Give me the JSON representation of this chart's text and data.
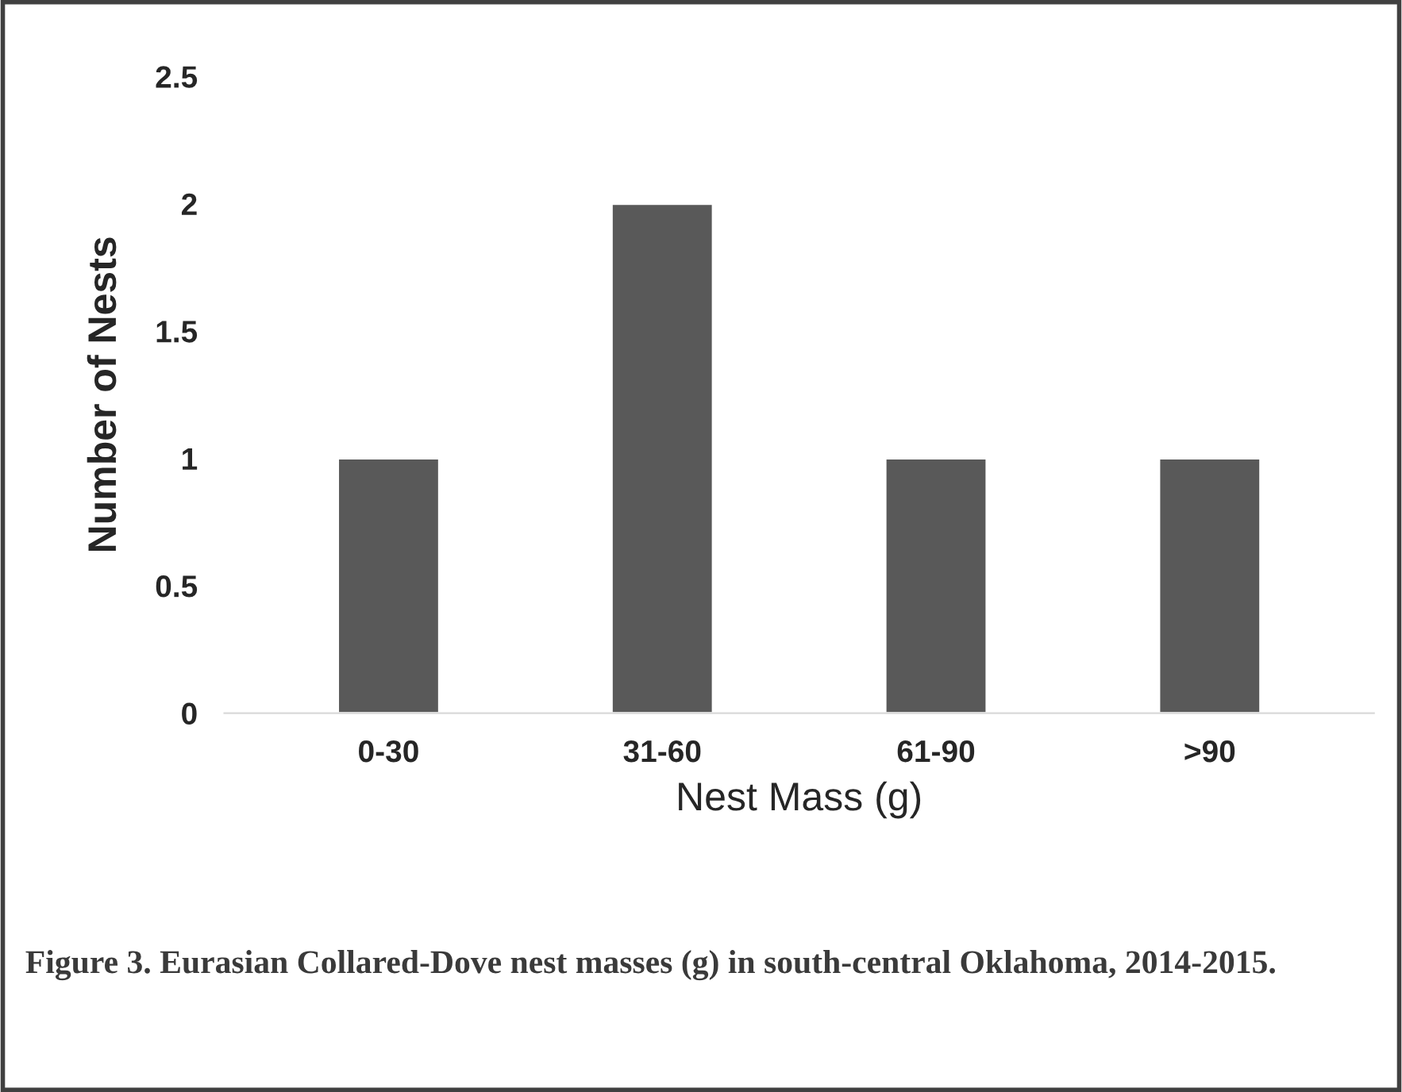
{
  "chart_data": {
    "type": "bar",
    "categories": [
      "0-30",
      "31-60",
      "61-90",
      ">90"
    ],
    "values": [
      1,
      2,
      1,
      1
    ],
    "color": "#595959",
    "xlabel": "Nest Mass (g)",
    "ylabel": "Number of Nests",
    "ylim": [
      0,
      2.5
    ],
    "yticks": [
      0,
      {
        "value": 0.5,
        "label": "0.5"
      },
      1,
      {
        "value": 1.5,
        "label": "1.5"
      },
      2,
      {
        "value": 2.5,
        "label": "2.5"
      }
    ],
    "grid": false,
    "legend": false,
    "annotations": [
      "Figure 3. Eurasian Collared-Dove nest masses (g) in south-central Oklahoma, 2014-2015."
    ]
  }
}
